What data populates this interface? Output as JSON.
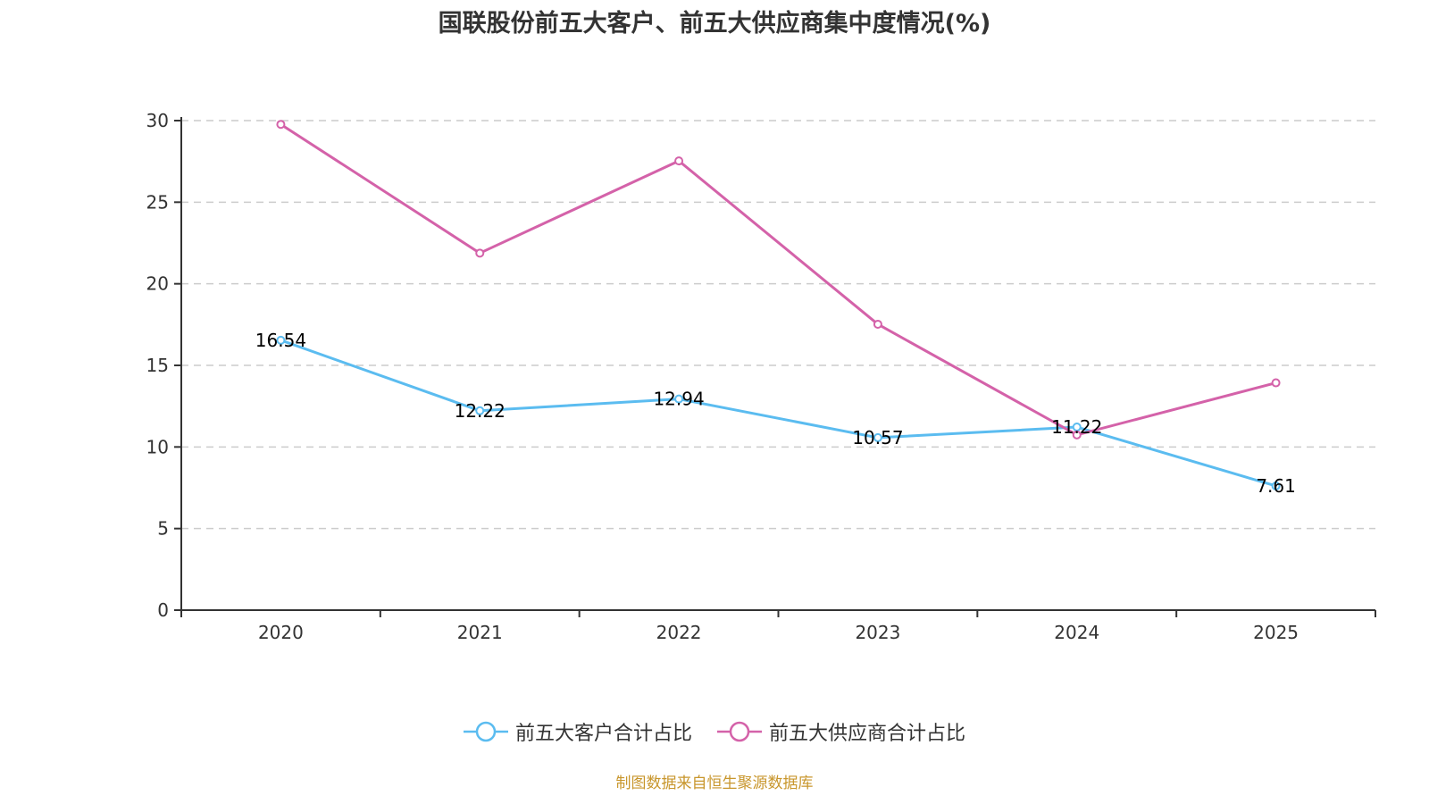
{
  "chart_data": {
    "type": "line",
    "title": "国联股份前五大客户、前五大供应商集中度情况(%)",
    "xlabel": "",
    "ylabel": "",
    "categories": [
      "2020",
      "2021",
      "2022",
      "2023",
      "2024",
      "2025"
    ],
    "ylim": [
      0,
      30
    ],
    "yticks": [
      0,
      5,
      10,
      15,
      20,
      25,
      30
    ],
    "grid": "horizontal-dashed",
    "legend_position": "bottom-center",
    "series": [
      {
        "name": "前五大客户合计占比",
        "color": "#5bbcf0",
        "values": [
          16.54,
          12.22,
          12.94,
          10.57,
          11.22,
          7.61
        ],
        "show_labels": true
      },
      {
        "name": "前五大供应商合计占比",
        "color": "#d462a9",
        "values": [
          29.77,
          21.88,
          27.53,
          17.52,
          10.74,
          13.93
        ],
        "show_labels": false
      }
    ]
  },
  "source_note": "制图数据来自恒生聚源数据库"
}
